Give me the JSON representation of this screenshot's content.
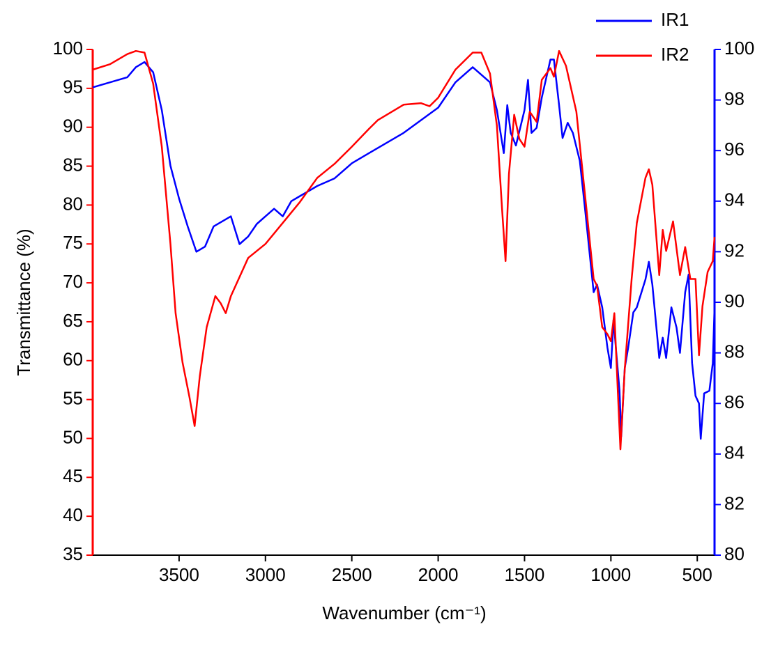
{
  "chart_data": {
    "type": "line",
    "x_label": "Wavenumber (cm⁻¹)",
    "y_label": "Transmittance (%)",
    "xlim": [
      4000,
      400
    ],
    "xticks": [
      3500,
      3000,
      2500,
      2000,
      1500,
      1000,
      500
    ],
    "ylim": [
      35,
      100
    ],
    "yticks": [
      35,
      40,
      45,
      50,
      55,
      60,
      65,
      70,
      75,
      80,
      85,
      90,
      95,
      100
    ],
    "y2lim": [
      80,
      100
    ],
    "y2ticks": [
      80,
      82,
      84,
      86,
      88,
      90,
      92,
      94,
      96,
      98,
      100
    ],
    "legend": "top-right",
    "series": [
      {
        "name": "IR1",
        "color": "#0000ff",
        "axis": "y2",
        "x": [
          4000,
          3900,
          3800,
          3750,
          3700,
          3650,
          3600,
          3550,
          3500,
          3450,
          3400,
          3350,
          3300,
          3250,
          3200,
          3150,
          3100,
          3050,
          3000,
          2950,
          2900,
          2850,
          2800,
          2750,
          2700,
          2600,
          2500,
          2400,
          2200,
          2000,
          1900,
          1800,
          1700,
          1660,
          1620,
          1600,
          1580,
          1550,
          1500,
          1480,
          1460,
          1430,
          1400,
          1350,
          1330,
          1300,
          1280,
          1250,
          1220,
          1180,
          1150,
          1100,
          1080,
          1050,
          1020,
          1000,
          985,
          950,
          940,
          920,
          900,
          870,
          850,
          800,
          780,
          760,
          720,
          700,
          680,
          650,
          620,
          600,
          570,
          550,
          530,
          510,
          490,
          480,
          460,
          430,
          410,
          400
        ],
        "values": [
          98.5,
          98.7,
          98.9,
          99.3,
          99.5,
          99.1,
          97.6,
          95.4,
          94.1,
          93.0,
          92.0,
          92.2,
          93.0,
          93.2,
          93.4,
          92.3,
          92.6,
          93.1,
          93.4,
          93.7,
          93.4,
          94.0,
          94.2,
          94.4,
          94.6,
          94.9,
          95.5,
          95.9,
          96.7,
          97.7,
          98.7,
          99.3,
          98.7,
          97.6,
          95.9,
          97.8,
          96.7,
          96.2,
          97.6,
          98.8,
          96.7,
          96.9,
          98.1,
          99.6,
          99.6,
          97.8,
          96.5,
          97.1,
          96.7,
          95.6,
          93.7,
          90.4,
          90.7,
          89.8,
          88.2,
          87.4,
          89.3,
          86.5,
          84.7,
          87.4,
          88.2,
          89.6,
          89.8,
          90.9,
          91.6,
          90.7,
          87.8,
          88.6,
          87.8,
          89.8,
          89.0,
          88.0,
          90.4,
          91.1,
          87.6,
          86.3,
          86.0,
          84.6,
          86.4,
          86.5,
          87.6,
          89.8
        ]
      },
      {
        "name": "IR2",
        "color": "#ff0000",
        "axis": "y",
        "x": [
          4000,
          3900,
          3800,
          3750,
          3700,
          3650,
          3600,
          3550,
          3520,
          3480,
          3440,
          3410,
          3380,
          3340,
          3290,
          3260,
          3230,
          3200,
          3100,
          3000,
          2900,
          2800,
          2700,
          2600,
          2500,
          2400,
          2350,
          2200,
          2100,
          2050,
          2000,
          1900,
          1800,
          1750,
          1700,
          1660,
          1630,
          1610,
          1590,
          1560,
          1530,
          1500,
          1470,
          1430,
          1400,
          1350,
          1330,
          1300,
          1260,
          1200,
          1150,
          1100,
          1080,
          1050,
          1020,
          1000,
          980,
          960,
          945,
          920,
          880,
          850,
          800,
          780,
          760,
          720,
          700,
          680,
          640,
          600,
          570,
          540,
          510,
          490,
          470,
          440,
          410,
          400
        ],
        "values": [
          97.4,
          98.1,
          99.4,
          99.8,
          99.6,
          95.6,
          87.5,
          75.0,
          66.1,
          59.8,
          55.3,
          51.6,
          58.0,
          64.3,
          68.3,
          67.4,
          66.1,
          68.3,
          73.2,
          75.0,
          77.7,
          80.4,
          83.5,
          85.3,
          87.5,
          89.8,
          90.9,
          92.9,
          93.1,
          92.7,
          93.8,
          97.4,
          99.6,
          99.6,
          96.9,
          90.2,
          79.5,
          72.8,
          84.0,
          91.6,
          88.5,
          87.5,
          92.0,
          90.7,
          96.1,
          97.6,
          96.5,
          99.8,
          97.9,
          92.0,
          81.3,
          70.5,
          69.6,
          64.3,
          63.4,
          62.5,
          66.1,
          56.2,
          48.6,
          58.9,
          70.5,
          77.7,
          83.5,
          84.6,
          82.6,
          71.0,
          76.8,
          74.1,
          77.9,
          71.0,
          74.6,
          70.5,
          70.5,
          60.7,
          67.0,
          71.4,
          72.8,
          75.9
        ]
      }
    ]
  }
}
